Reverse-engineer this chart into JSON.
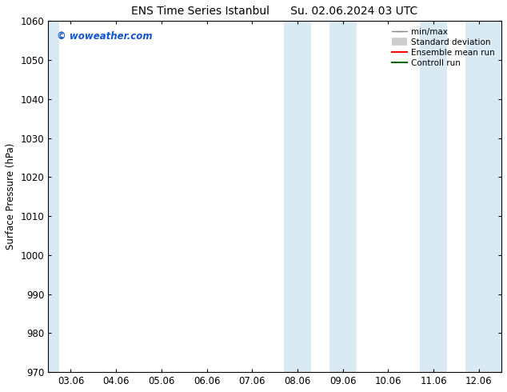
{
  "title_left": "ENS Time Series Istanbul",
  "title_right": "Su. 02.06.2024 03 UTC",
  "ylabel": "Surface Pressure (hPa)",
  "ylim": [
    970,
    1060
  ],
  "yticks": [
    970,
    980,
    990,
    1000,
    1010,
    1020,
    1030,
    1040,
    1050,
    1060
  ],
  "xtick_labels": [
    "03.06",
    "04.06",
    "05.06",
    "06.06",
    "07.06",
    "08.06",
    "09.06",
    "10.06",
    "11.06",
    "12.06"
  ],
  "shaded_color": "#daeaf5",
  "background_color": "#ffffff",
  "watermark": "© woweather.com",
  "watermark_color": "#1155cc",
  "font_size": 8.5,
  "title_fontsize": 10,
  "legend_fontsize": 7.5
}
